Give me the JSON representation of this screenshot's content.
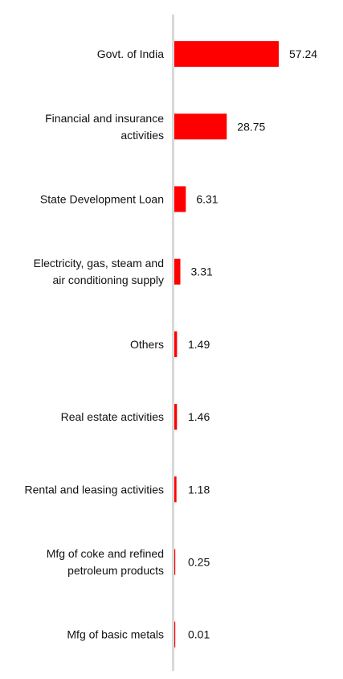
{
  "chart_data": {
    "type": "bar",
    "orientation": "horizontal",
    "title": "",
    "xlabel": "",
    "ylabel": "",
    "categories": [
      "Govt. of India",
      "Financial and insurance activities",
      "State Development Loan",
      "Electricity, gas, steam and air conditioning supply",
      "Others",
      "Real estate activities",
      "Rental and leasing activities",
      "Mfg of coke and refined petroleum products",
      "Mfg of basic metals"
    ],
    "category_lines": [
      [
        "Govt. of India"
      ],
      [
        "Financial and insurance",
        "activities"
      ],
      [
        "State Development Loan"
      ],
      [
        "Electricity, gas, steam and",
        "air conditioning supply"
      ],
      [
        "Others"
      ],
      [
        "Real estate activities"
      ],
      [
        "Rental and leasing activities"
      ],
      [
        "Mfg of coke and refined",
        "petroleum products"
      ],
      [
        "Mfg of basic metals"
      ]
    ],
    "values": [
      57.24,
      28.75,
      6.31,
      3.31,
      1.49,
      1.46,
      1.18,
      0.25,
      0.01
    ],
    "value_labels": [
      "57.24",
      "28.75",
      "6.31",
      "3.31",
      "1.49",
      "1.46",
      "1.18",
      "0.25",
      "0.01"
    ],
    "xlim": [
      0,
      57.24
    ],
    "grid": false,
    "legend": "none",
    "colors": {
      "bar": "#ff0000",
      "axis": "#d9d9d9",
      "text": "#111111"
    }
  }
}
